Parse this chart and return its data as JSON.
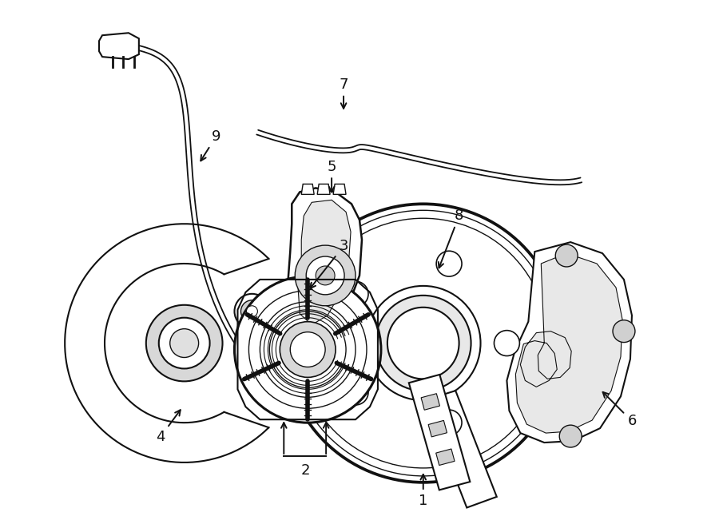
{
  "background_color": "#ffffff",
  "line_color": "#111111",
  "label_fontsize": 13,
  "fig_width": 9.0,
  "fig_height": 6.61,
  "dpi": 100
}
